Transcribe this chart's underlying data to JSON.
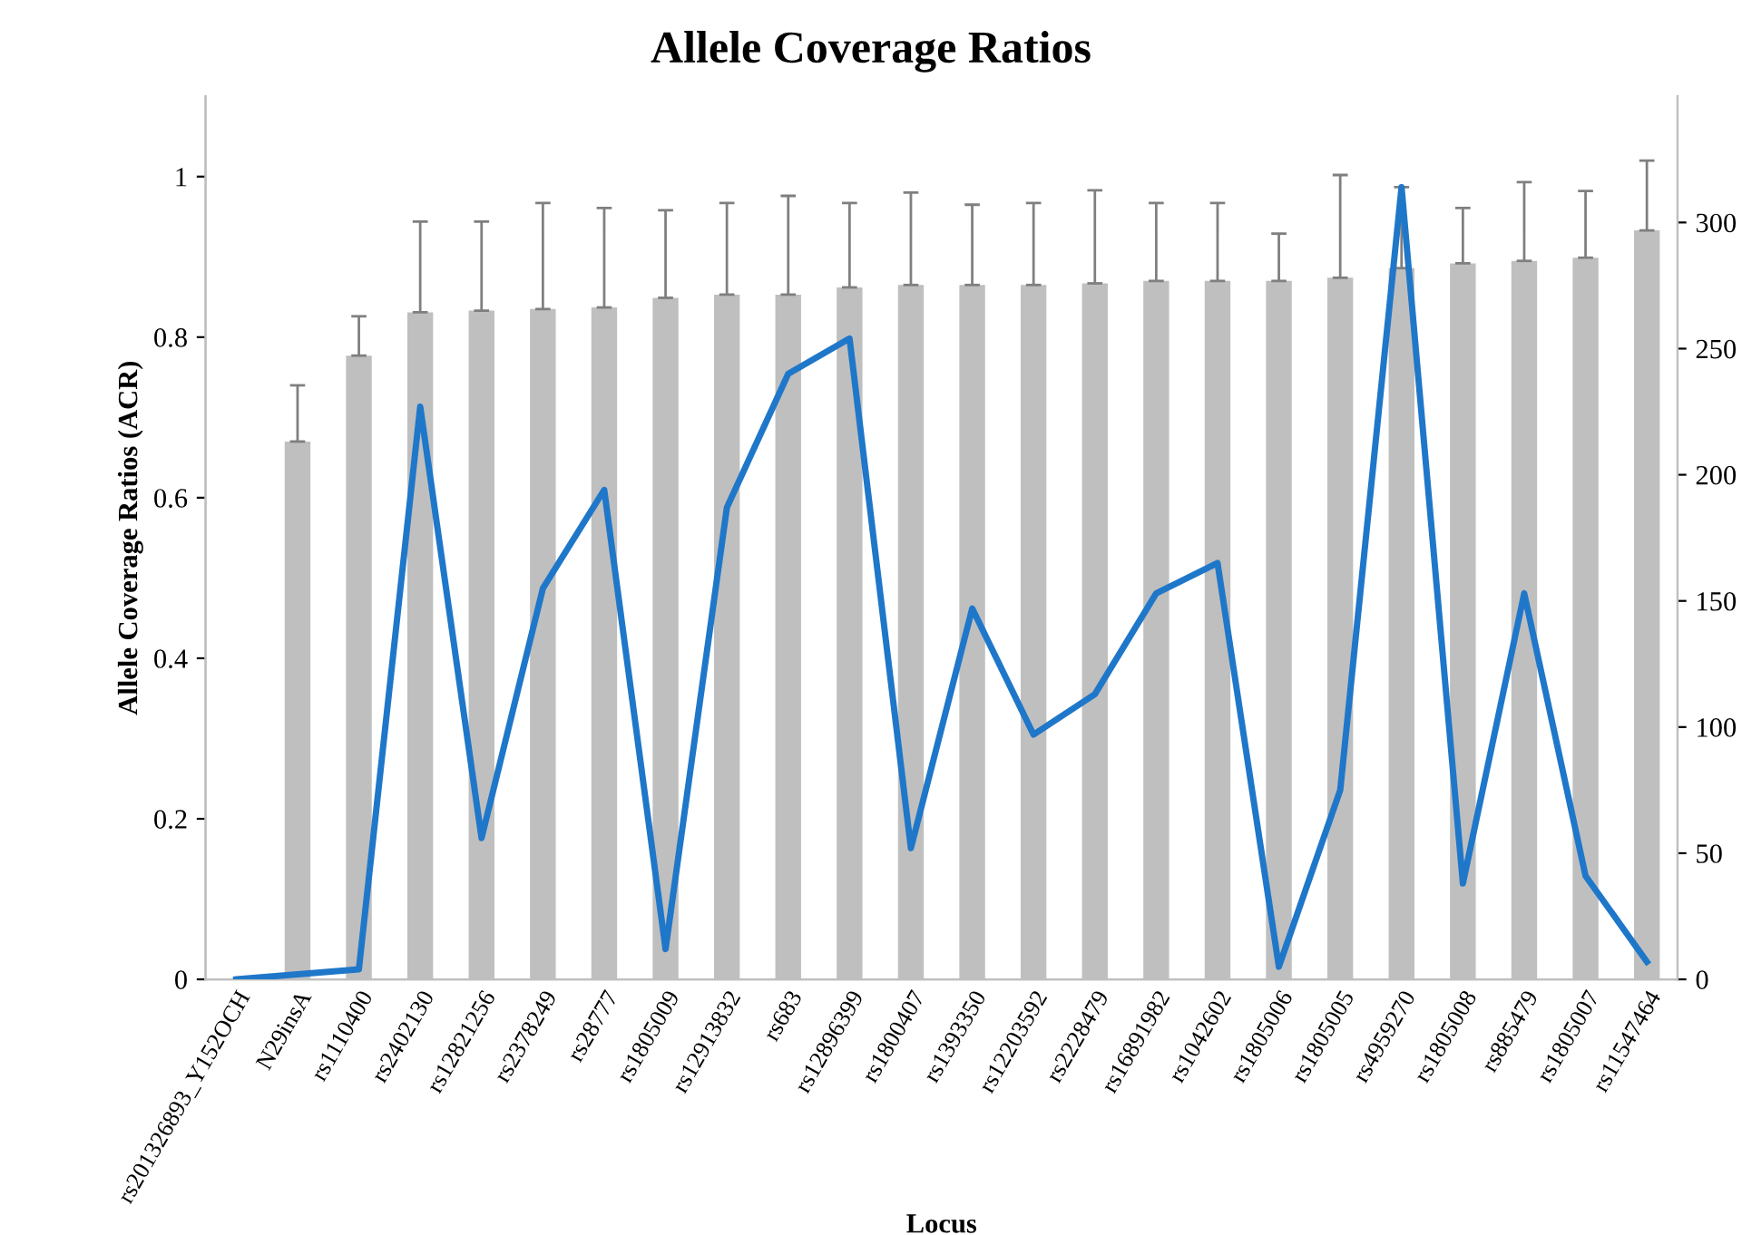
{
  "chart_data": {
    "type": "bar",
    "title": "Allele Coverage Ratios",
    "xlabel": "Locus",
    "ylabel": "Allele Coverage Ratios (ACR)",
    "categories": [
      "rs201326893_Y152OCH",
      "N29insA",
      "rs1110400",
      "rs2402130",
      "rs12821256",
      "rs2378249",
      "rs28777",
      "rs1805009",
      "rs12913832",
      "rs683",
      "rs12896399",
      "rs1800407",
      "rs1393350",
      "rs12203592",
      "rs2228479",
      "rs16891982",
      "rs1042602",
      "rs1805006",
      "rs1805005",
      "rs4959270",
      "rs1805008",
      "rs885479",
      "rs1805007",
      "rs11547464"
    ],
    "series": [
      {
        "color": "#bfbfbf",
        "values": [
          null,
          0.67,
          0.777,
          0.831,
          0.833,
          0.835,
          0.837,
          0.849,
          0.853,
          0.853,
          0.862,
          0.865,
          0.865,
          0.865,
          0.867,
          0.87,
          0.87,
          0.87,
          0.874,
          0.886,
          0.892,
          0.895,
          0.899,
          0.933
        ],
        "errors": [
          null,
          [
            0.67,
            0.74
          ],
          [
            0.777,
            0.826
          ],
          [
            0.831,
            0.944
          ],
          [
            0.833,
            0.944
          ],
          [
            0.835,
            0.967
          ],
          [
            0.837,
            0.961
          ],
          [
            0.849,
            0.958
          ],
          [
            0.853,
            0.967
          ],
          [
            0.853,
            0.976
          ],
          [
            0.862,
            0.967
          ],
          [
            0.865,
            0.98
          ],
          [
            0.865,
            0.965
          ],
          [
            0.865,
            0.967
          ],
          [
            0.867,
            0.983
          ],
          [
            0.87,
            0.967
          ],
          [
            0.87,
            0.967
          ],
          [
            0.87,
            0.929
          ],
          [
            0.874,
            1.002
          ],
          [
            0.886,
            0.987
          ],
          [
            0.892,
            0.961
          ],
          [
            0.895,
            0.993
          ],
          [
            0.899,
            0.982
          ],
          [
            0.933,
            1.02
          ]
        ]
      },
      {
        "type": "line",
        "axis": "y2",
        "color": "#1f77c9",
        "values": [
          0,
          2,
          4,
          227,
          56,
          155,
          194,
          12,
          187,
          240,
          254,
          52,
          147,
          97,
          113,
          153,
          165,
          5,
          75,
          314,
          38,
          153,
          41,
          7
        ]
      }
    ],
    "ylim": [
      0,
      1.1
    ],
    "yticks": [
      0,
      0.2,
      0.4,
      0.6,
      0.8,
      1
    ],
    "y2lim": [
      0,
      350
    ],
    "y2ticks": [
      0,
      50,
      100,
      150,
      200,
      250,
      300
    ],
    "grid": false,
    "legend": false,
    "marker": "none",
    "line_style": "solid"
  }
}
